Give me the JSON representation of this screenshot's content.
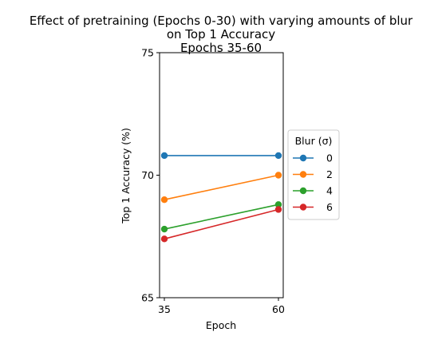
{
  "chart_data": {
    "type": "line",
    "title_lines": [
      "Effect of pretraining (Epochs 0-30) with varying amounts of blur",
      "on Top 1 Accuracy",
      "Epochs 35-60"
    ],
    "xlabel": "Epoch",
    "ylabel": "Top 1 Accuracy (%)",
    "x": [
      35,
      60
    ],
    "x_ticks": [
      "35",
      "60"
    ],
    "y_ticks": [
      "65",
      "70",
      "75"
    ],
    "ylim": [
      65,
      75
    ],
    "grid": false,
    "legend": {
      "title": "Blur (σ)",
      "placement": "right"
    },
    "series": [
      {
        "name": "0",
        "values": [
          70.8,
          70.8
        ],
        "color": "#1f77b4"
      },
      {
        "name": "2",
        "values": [
          69.0,
          70.0
        ],
        "color": "#ff7f0e"
      },
      {
        "name": "4",
        "values": [
          67.8,
          68.8
        ],
        "color": "#2ca02c"
      },
      {
        "name": "6",
        "values": [
          67.4,
          68.6
        ],
        "color": "#d62728"
      }
    ]
  }
}
